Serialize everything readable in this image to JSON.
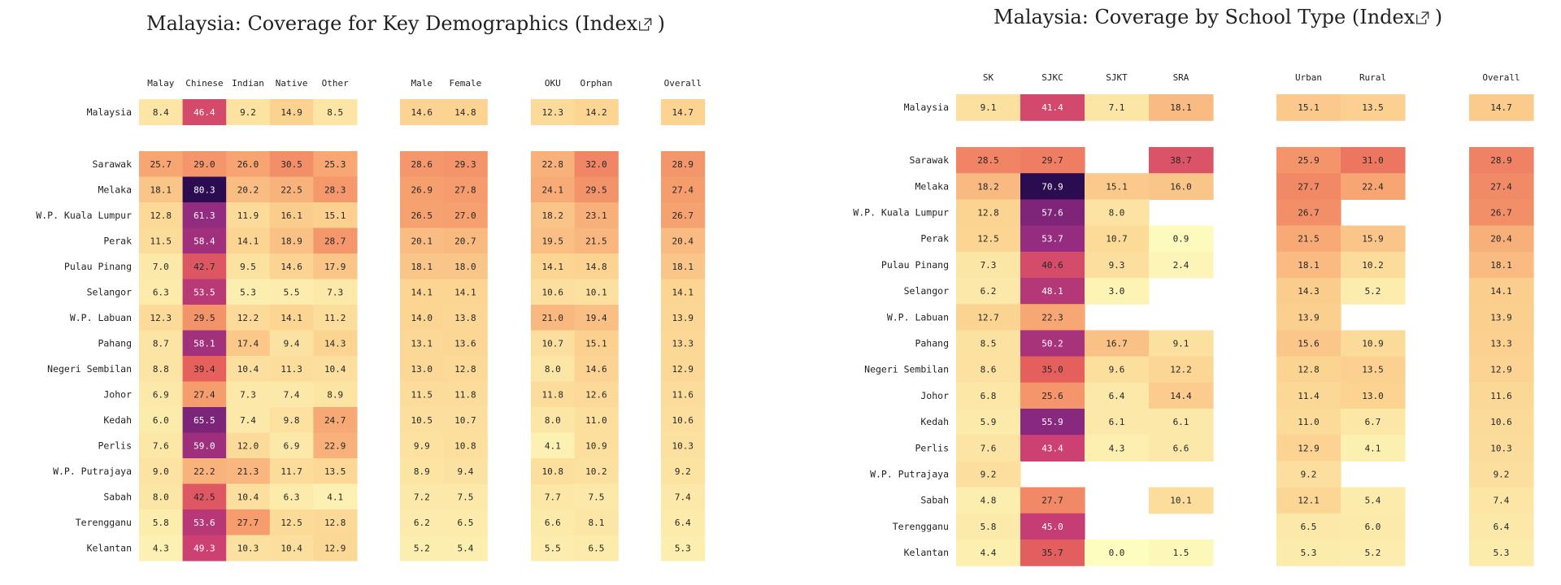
{
  "chart_data": [
    {
      "type": "heatmap",
      "title": "Malaysia: Coverage for Key Demographics",
      "link_label": "(Index",
      "link_icon": "external-link-icon",
      "link_close": ")",
      "groups": [
        [
          "Malay",
          "Chinese",
          "Indian",
          "Native",
          "Other"
        ],
        [
          "Male",
          "Female"
        ],
        [
          "OKU",
          "Orphan"
        ],
        [
          "Overall"
        ]
      ],
      "color_range": [
        0,
        80.3
      ],
      "rows": [
        {
          "label": "Malaysia",
          "values": [
            8.4,
            46.4,
            9.2,
            14.9,
            8.5,
            14.6,
            14.8,
            12.3,
            14.2,
            14.7
          ]
        },
        {
          "label": "Sarawak",
          "values": [
            25.7,
            29.0,
            26.0,
            30.5,
            25.3,
            28.6,
            29.3,
            22.8,
            32.0,
            28.9
          ]
        },
        {
          "label": "Melaka",
          "values": [
            18.1,
            80.3,
            20.2,
            22.5,
            28.3,
            26.9,
            27.8,
            24.1,
            29.5,
            27.4
          ]
        },
        {
          "label": "W.P. Kuala Lumpur",
          "values": [
            12.8,
            61.3,
            11.9,
            16.1,
            15.1,
            26.5,
            27.0,
            18.2,
            23.1,
            26.7
          ]
        },
        {
          "label": "Perak",
          "values": [
            11.5,
            58.4,
            14.1,
            18.9,
            28.7,
            20.1,
            20.7,
            19.5,
            21.5,
            20.4
          ]
        },
        {
          "label": "Pulau Pinang",
          "values": [
            7.0,
            42.7,
            9.5,
            14.6,
            17.9,
            18.1,
            18.0,
            14.1,
            14.8,
            18.1
          ]
        },
        {
          "label": "Selangor",
          "values": [
            6.3,
            53.5,
            5.3,
            5.5,
            7.3,
            14.1,
            14.1,
            10.6,
            10.1,
            14.1
          ]
        },
        {
          "label": "W.P. Labuan",
          "values": [
            12.3,
            29.5,
            12.2,
            14.1,
            11.2,
            14.0,
            13.8,
            21.0,
            19.4,
            13.9
          ]
        },
        {
          "label": "Pahang",
          "values": [
            8.7,
            58.1,
            17.4,
            9.4,
            14.3,
            13.1,
            13.6,
            10.7,
            15.1,
            13.3
          ]
        },
        {
          "label": "Negeri Sembilan",
          "values": [
            8.8,
            39.4,
            10.4,
            11.3,
            10.4,
            13.0,
            12.8,
            8.0,
            14.6,
            12.9
          ]
        },
        {
          "label": "Johor",
          "values": [
            6.9,
            27.4,
            7.3,
            7.4,
            8.9,
            11.5,
            11.8,
            11.8,
            12.6,
            11.6
          ]
        },
        {
          "label": "Kedah",
          "values": [
            6.0,
            65.5,
            7.4,
            9.8,
            24.7,
            10.5,
            10.7,
            8.0,
            11.0,
            10.6
          ]
        },
        {
          "label": "Perlis",
          "values": [
            7.6,
            59.0,
            12.0,
            6.9,
            22.9,
            9.9,
            10.8,
            4.1,
            10.9,
            10.3
          ]
        },
        {
          "label": "W.P. Putrajaya",
          "values": [
            9.0,
            22.2,
            21.3,
            11.7,
            13.5,
            8.9,
            9.4,
            10.8,
            10.2,
            9.2
          ]
        },
        {
          "label": "Sabah",
          "values": [
            8.0,
            42.5,
            10.4,
            6.3,
            4.1,
            7.2,
            7.5,
            7.7,
            7.5,
            7.4
          ]
        },
        {
          "label": "Terengganu",
          "values": [
            5.8,
            53.6,
            27.7,
            12.5,
            12.8,
            6.2,
            6.5,
            6.6,
            8.1,
            6.4
          ]
        },
        {
          "label": "Kelantan",
          "values": [
            4.3,
            49.3,
            10.3,
            10.4,
            12.9,
            5.2,
            5.4,
            5.5,
            6.5,
            5.3
          ]
        }
      ]
    },
    {
      "type": "heatmap",
      "title": "Malaysia: Coverage by School Type",
      "link_label": "(Index",
      "link_icon": "external-link-icon",
      "link_close": ")",
      "groups": [
        [
          "SK",
          "SJKC",
          "SJKT",
          "SRA"
        ],
        [
          "Urban",
          "Rural"
        ],
        [
          "Overall"
        ]
      ],
      "color_range": [
        0,
        70.9
      ],
      "rows": [
        {
          "label": "Malaysia",
          "values": [
            9.1,
            41.4,
            7.1,
            18.1,
            15.1,
            13.5,
            14.7
          ]
        },
        {
          "label": "Sarawak",
          "values": [
            28.5,
            29.7,
            null,
            38.7,
            25.9,
            31.0,
            28.9
          ]
        },
        {
          "label": "Melaka",
          "values": [
            18.2,
            70.9,
            15.1,
            16.0,
            27.7,
            22.4,
            27.4
          ]
        },
        {
          "label": "W.P. Kuala Lumpur",
          "values": [
            12.8,
            57.6,
            8.0,
            null,
            26.7,
            null,
            26.7
          ]
        },
        {
          "label": "Perak",
          "values": [
            12.5,
            53.7,
            10.7,
            0.9,
            21.5,
            15.9,
            20.4
          ]
        },
        {
          "label": "Pulau Pinang",
          "values": [
            7.3,
            40.6,
            9.3,
            2.4,
            18.1,
            10.2,
            18.1
          ]
        },
        {
          "label": "Selangor",
          "values": [
            6.2,
            48.1,
            3.0,
            null,
            14.3,
            5.2,
            14.1
          ]
        },
        {
          "label": "W.P. Labuan",
          "values": [
            12.7,
            22.3,
            null,
            null,
            13.9,
            null,
            13.9
          ]
        },
        {
          "label": "Pahang",
          "values": [
            8.5,
            50.2,
            16.7,
            9.1,
            15.6,
            10.9,
            13.3
          ]
        },
        {
          "label": "Negeri Sembilan",
          "values": [
            8.6,
            35.0,
            9.6,
            12.2,
            12.8,
            13.5,
            12.9
          ]
        },
        {
          "label": "Johor",
          "values": [
            6.8,
            25.6,
            6.4,
            14.4,
            11.4,
            13.0,
            11.6
          ]
        },
        {
          "label": "Kedah",
          "values": [
            5.9,
            55.9,
            6.1,
            6.1,
            11.0,
            6.7,
            10.6
          ]
        },
        {
          "label": "Perlis",
          "values": [
            7.6,
            43.4,
            4.3,
            6.6,
            12.9,
            4.1,
            10.3
          ]
        },
        {
          "label": "W.P. Putrajaya",
          "values": [
            9.2,
            null,
            null,
            null,
            9.2,
            null,
            9.2
          ]
        },
        {
          "label": "Sabah",
          "values": [
            4.8,
            27.7,
            null,
            10.1,
            12.1,
            5.4,
            7.4
          ]
        },
        {
          "label": "Terengganu",
          "values": [
            5.8,
            45.0,
            null,
            null,
            6.5,
            6.0,
            6.4
          ]
        },
        {
          "label": "Kelantan",
          "values": [
            4.4,
            35.7,
            0.0,
            1.5,
            5.3,
            5.2,
            5.3
          ]
        }
      ]
    }
  ]
}
